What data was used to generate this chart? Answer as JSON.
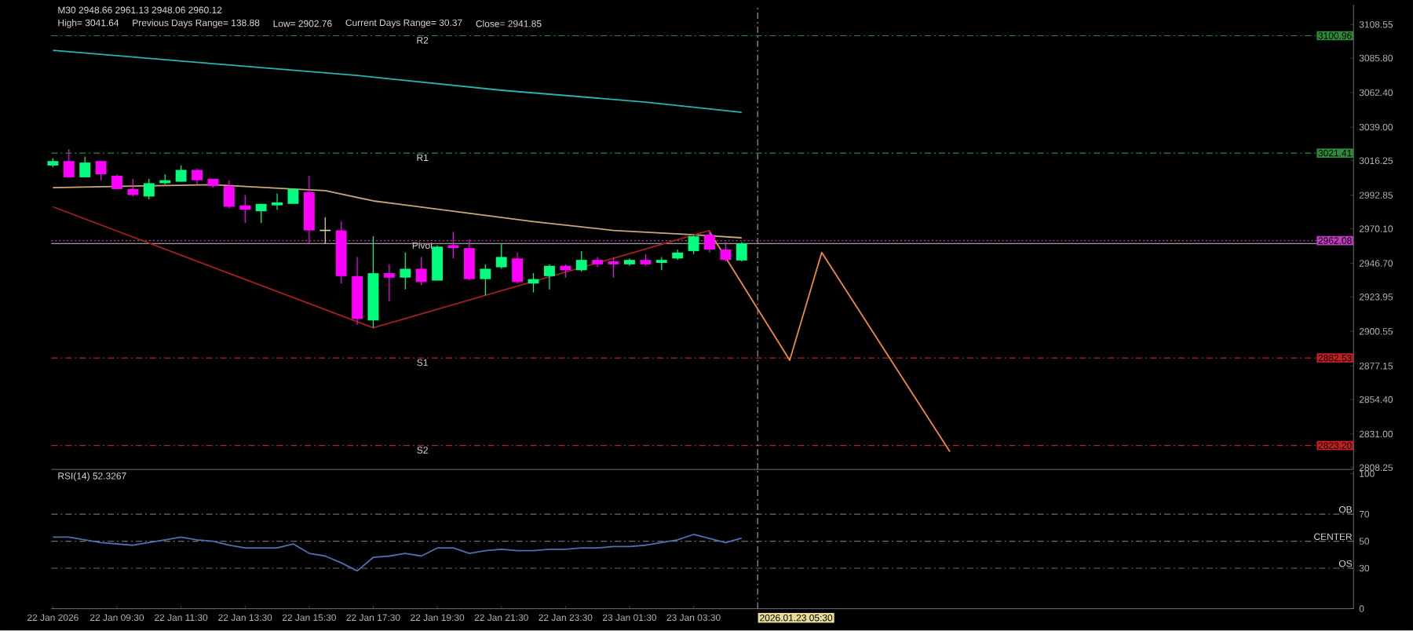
{
  "chart_data": [
    {
      "type": "candlestick",
      "title": "M30 2948.66 2961.13 2948.06 2960.12",
      "annotations": [
        "High= 3041.64",
        "Previous Days Range= 138.88",
        "Low= 2902.76",
        "Current Days Range= 30.37",
        "Close= 2941.85",
        {
          "text": "3100.96",
          "y": 3100.96
        },
        {
          "text": "3021.41",
          "y": 3021.41
        },
        {
          "text": "2962.08",
          "y": 2962.08
        },
        {
          "text": "2882.53",
          "y": 2882.53
        },
        {
          "text": "2823.20",
          "y": 2823.2
        }
      ],
      "x": [
        "2026-01-22T07:30",
        "2026-01-22T08:00",
        "2026-01-22T08:30",
        "2026-01-22T09:00",
        "2026-01-22T09:30",
        "2026-01-22T10:00",
        "2026-01-22T10:30",
        "2026-01-22T11:00",
        "2026-01-22T11:30",
        "2026-01-22T12:00",
        "2026-01-22T12:30",
        "2026-01-22T13:00",
        "2026-01-22T13:30",
        "2026-01-22T14:00",
        "2026-01-22T14:30",
        "2026-01-22T15:00",
        "2026-01-22T15:30",
        "2026-01-22T16:00",
        "2026-01-22T16:30",
        "2026-01-22T17:00",
        "2026-01-22T17:30",
        "2026-01-22T18:00",
        "2026-01-22T18:30",
        "2026-01-22T19:00",
        "2026-01-22T19:30",
        "2026-01-22T20:00",
        "2026-01-22T20:30",
        "2026-01-22T21:00",
        "2026-01-22T21:30",
        "2026-01-22T22:00",
        "2026-01-22T22:30",
        "2026-01-22T23:00",
        "2026-01-22T23:30",
        "2026-01-23T00:00",
        "2026-01-23T00:30",
        "2026-01-23T01:00",
        "2026-01-23T01:30",
        "2026-01-23T02:00",
        "2026-01-23T02:30",
        "2026-01-23T03:00",
        "2026-01-23T03:30",
        "2026-01-23T04:00",
        "2026-01-23T04:30",
        "2026-01-23T05:00"
      ],
      "ohlc": [
        [
          3013,
          3018,
          3012,
          3016
        ],
        [
          3016,
          3024,
          3005,
          3005
        ],
        [
          3005,
          3019,
          3005,
          3015
        ],
        [
          3016,
          3016,
          3003,
          3007
        ],
        [
          3006,
          3007,
          2997,
          2997
        ],
        [
          2997,
          3004,
          2992,
          2993
        ],
        [
          2992,
          3004,
          2990,
          3001
        ],
        [
          3001,
          3007,
          3000,
          3003
        ],
        [
          3002,
          3013,
          3002,
          3010
        ],
        [
          3010,
          3011,
          3000,
          3003
        ],
        [
          3004,
          3004,
          2998,
          2999
        ],
        [
          2999,
          3003,
          2984,
          2985
        ],
        [
          2986,
          2993,
          2974,
          2983
        ],
        [
          2982,
          2987,
          2974,
          2987
        ],
        [
          2986,
          2994,
          2983,
          2988
        ],
        [
          2987,
          2997,
          2987,
          2997
        ],
        [
          2995,
          3006,
          2960,
          2969
        ],
        [
          2969,
          2978,
          2960,
          2969
        ],
        [
          2969,
          2975,
          2933,
          2938
        ],
        [
          2938,
          2951,
          2905,
          2909
        ],
        [
          2908,
          2965,
          2903,
          2940
        ],
        [
          2940,
          2946,
          2921,
          2937
        ],
        [
          2937,
          2954,
          2929,
          2943
        ],
        [
          2943,
          2951,
          2932,
          2934
        ],
        [
          2935,
          2959,
          2935,
          2958
        ],
        [
          2959,
          2968,
          2950,
          2957
        ],
        [
          2957,
          2963,
          2935,
          2936
        ],
        [
          2936,
          2946,
          2925,
          2943
        ],
        [
          2944,
          2960,
          2943,
          2951
        ],
        [
          2950,
          2954,
          2933,
          2934
        ],
        [
          2933,
          2940,
          2927,
          2936
        ],
        [
          2938,
          2946,
          2929,
          2945
        ],
        [
          2945,
          2946,
          2937,
          2942
        ],
        [
          2942,
          2955,
          2941,
          2949
        ],
        [
          2949,
          2951,
          2944,
          2946
        ],
        [
          2948,
          2951,
          2937,
          2946
        ],
        [
          2946,
          2950,
          2945,
          2949
        ],
        [
          2949,
          2953,
          2945,
          2946
        ],
        [
          2947,
          2951,
          2942,
          2949
        ],
        [
          2950,
          2956,
          2949,
          2954
        ],
        [
          2955,
          2966,
          2953,
          2965
        ],
        [
          2966,
          2969,
          2954,
          2956
        ],
        [
          2956,
          2961,
          2948,
          2949
        ],
        [
          2948.66,
          2961.13,
          2948.06,
          2960.12
        ]
      ],
      "colors": [
        "#00ff7f",
        "#ff00ff",
        "#00ff7f",
        "#ff00ff",
        "#ff00ff",
        "#ff00ff",
        "#00ff7f",
        "#00ff7f",
        "#00ff7f",
        "#ff00ff",
        "#ff00ff",
        "#ff00ff",
        "#ff00ff",
        "#00ff7f",
        "#00ff7f",
        "#00ff7f",
        "#ff00ff",
        "#e6d8a8",
        "#ff00ff",
        "#ff00ff",
        "#00ff7f",
        "#ff00ff",
        "#00ff7f",
        "#ff00ff",
        "#00ff7f",
        "#ff00ff",
        "#ff00ff",
        "#00ff7f",
        "#00ff7f",
        "#ff00ff",
        "#00ff7f",
        "#00ff7f",
        "#ff00ff",
        "#00ff7f",
        "#ff00ff",
        "#ff00ff",
        "#00ff7f",
        "#ff00ff",
        "#00ff7f",
        "#00ff7f",
        "#00ff7f",
        "#ff00ff",
        "#ff00ff",
        "#00ff7f"
      ],
      "series": [
        {
          "type": "line",
          "color": "#2ab3b3",
          "x": [
            "2026-01-22T07:30",
            "2026-01-22T12:30",
            "2026-01-22T17:00",
            "2026-01-22T21:30",
            "2026-01-23T02:00",
            "2026-01-23T05:00"
          ],
          "values": [
            3091,
            3082,
            3074,
            3064,
            3056,
            3049
          ]
        },
        {
          "type": "line",
          "color": "#c8a878",
          "x": [
            "2026-01-22T07:30",
            "2026-01-22T10:00",
            "2026-01-22T12:30",
            "2026-01-22T15:00",
            "2026-01-22T16:00",
            "2026-01-22T17:30",
            "2026-01-22T20:00",
            "2026-01-22T22:30",
            "2026-01-23T01:00",
            "2026-01-23T03:30",
            "2026-01-23T05:00"
          ],
          "values": [
            2998,
            2999,
            3000,
            2997,
            2996,
            2989,
            2982,
            2975,
            2969,
            2966,
            2964
          ]
        },
        {
          "type": "line",
          "color": "#a02020",
          "x": [
            "2026-01-22T07:30",
            "2026-01-22T17:30",
            "2026-01-23T04:00"
          ],
          "values": [
            2985,
            2903,
            2969
          ]
        },
        {
          "type": "line",
          "color": "#f08a3c",
          "x": [
            "2026-01-23T04:00",
            "2026-01-23T06:30",
            "2026-01-23T07:30",
            "2026-01-23T11:30"
          ],
          "values": [
            2968,
            2881,
            2954,
            2819
          ]
        }
      ],
      "xlim": [
        "2026-01-22T07:27",
        "2026-01-24T00:06"
      ],
      "ylim": [
        2807,
        3122
      ],
      "yticks": [
        {
          "value": 3108.55,
          "label": "3108.55"
        },
        {
          "value": 3085.8,
          "label": "3085.80"
        },
        {
          "value": 3062.4,
          "label": "3062.40"
        },
        {
          "value": 3039.0,
          "label": "3039.00"
        },
        {
          "value": 3016.25,
          "label": "3016.25"
        },
        {
          "value": 2992.85,
          "label": "2992.85"
        },
        {
          "value": 2970.1,
          "label": "2970.10"
        },
        {
          "value": 2946.7,
          "label": "2946.70"
        },
        {
          "value": 2923.95,
          "label": "2923.95"
        },
        {
          "value": 2900.55,
          "label": "2900.55"
        },
        {
          "value": 2877.15,
          "label": "2877.15"
        },
        {
          "value": 2854.4,
          "label": "2854.40"
        },
        {
          "value": 2831.0,
          "label": "2831.00"
        },
        {
          "value": 2808.25,
          "label": "2808.25"
        }
      ],
      "tick_labels": "y",
      "ref_lines": [
        {
          "axis": "y",
          "value": 3100.96,
          "label": "R2",
          "color": "#2f8a3a",
          "line_style": "dashed"
        },
        {
          "axis": "y",
          "value": 3021.41,
          "label": "R1",
          "color": "#2f8a3a",
          "line_style": "dashed"
        },
        {
          "axis": "y",
          "value": 2962.08,
          "label": "Pivot",
          "color": "#c03cc0",
          "line_style": "dotted"
        },
        {
          "axis": "y",
          "value": 2960.12,
          "color": "#9a9a9a",
          "line_style": "solid"
        },
        {
          "axis": "y",
          "value": 2882.53,
          "label": "S1",
          "color": "#c02020",
          "line_style": "dashed"
        },
        {
          "axis": "y",
          "value": 2823.2,
          "label": "S2",
          "color": "#c02020",
          "line_style": "dashed"
        },
        {
          "axis": "x",
          "value": "2026-01-23T05:30",
          "color": "#9a9a9a",
          "line_style": "dashed"
        }
      ]
    },
    {
      "type": "line",
      "title": "RSI(14) 52.3267",
      "x": [
        "2026-01-22T07:30",
        "2026-01-22T08:00",
        "2026-01-22T08:30",
        "2026-01-22T09:00",
        "2026-01-22T09:30",
        "2026-01-22T10:00",
        "2026-01-22T10:30",
        "2026-01-22T11:00",
        "2026-01-22T11:30",
        "2026-01-22T12:00",
        "2026-01-22T12:30",
        "2026-01-22T13:00",
        "2026-01-22T13:30",
        "2026-01-22T14:00",
        "2026-01-22T14:30",
        "2026-01-22T15:00",
        "2026-01-22T15:30",
        "2026-01-22T16:00",
        "2026-01-22T16:30",
        "2026-01-22T17:00",
        "2026-01-22T17:30",
        "2026-01-22T18:00",
        "2026-01-22T18:30",
        "2026-01-22T19:00",
        "2026-01-22T19:30",
        "2026-01-22T20:00",
        "2026-01-22T20:30",
        "2026-01-22T21:00",
        "2026-01-22T21:30",
        "2026-01-22T22:00",
        "2026-01-22T22:30",
        "2026-01-22T23:00",
        "2026-01-22T23:30",
        "2026-01-23T00:00",
        "2026-01-23T00:30",
        "2026-01-23T01:00",
        "2026-01-23T01:30",
        "2026-01-23T02:00",
        "2026-01-23T02:30",
        "2026-01-23T03:00",
        "2026-01-23T03:30",
        "2026-01-23T04:00",
        "2026-01-23T04:30",
        "2026-01-23T05:00"
      ],
      "series": [
        {
          "color": "#4f6fb0",
          "values": [
            53,
            53,
            51,
            49,
            48,
            47,
            49,
            51,
            53,
            51,
            50,
            47,
            45,
            45,
            45,
            48,
            41,
            39,
            34,
            28,
            38,
            39,
            41,
            39,
            45,
            45,
            41,
            43,
            44,
            43,
            43,
            44,
            44,
            45,
            45,
            46,
            46,
            47,
            49,
            51,
            55,
            52,
            49,
            52.3267
          ]
        }
      ],
      "xlim": [
        "2026-01-22T07:27",
        "2026-01-24T00:06"
      ],
      "ylim": [
        0,
        102
      ],
      "xticks": [
        {
          "value": "2026-01-22T07:30",
          "label": "22 Jan 2026"
        },
        {
          "value": "2026-01-22T09:30",
          "label": "22 Jan 09:30"
        },
        {
          "value": "2026-01-22T11:30",
          "label": "22 Jan 11:30"
        },
        {
          "value": "2026-01-22T13:30",
          "label": "22 Jan 13:30"
        },
        {
          "value": "2026-01-22T15:30",
          "label": "22 Jan 15:30"
        },
        {
          "value": "2026-01-22T17:30",
          "label": "22 Jan 17:30"
        },
        {
          "value": "2026-01-22T19:30",
          "label": "22 Jan 19:30"
        },
        {
          "value": "2026-01-22T21:30",
          "label": "22 Jan 21:30"
        },
        {
          "value": "2026-01-22T23:30",
          "label": "22 Jan 23:30"
        },
        {
          "value": "2026-01-23T01:30",
          "label": "23 Jan 01:30"
        },
        {
          "value": "2026-01-23T03:30",
          "label": "23 Jan 03:30"
        }
      ],
      "yticks": [
        0,
        30,
        50,
        70,
        100
      ],
      "ref_lines": [
        {
          "axis": "y",
          "value": 70,
          "label": "OB",
          "color": "#6e6e6e",
          "line_style": "dashed"
        },
        {
          "axis": "y",
          "value": 50,
          "label": "CENTER",
          "color": "#6e6e6e",
          "line_style": "dashed"
        },
        {
          "axis": "y",
          "value": 30,
          "label": "OS",
          "color": "#6e6e6e",
          "line_style": "dashed"
        },
        {
          "axis": "x",
          "value": "2026-01-23T05:30",
          "label": "2026.01.23 05:30",
          "color": "#9a9a9a",
          "line_style": "dashed"
        }
      ]
    }
  ]
}
